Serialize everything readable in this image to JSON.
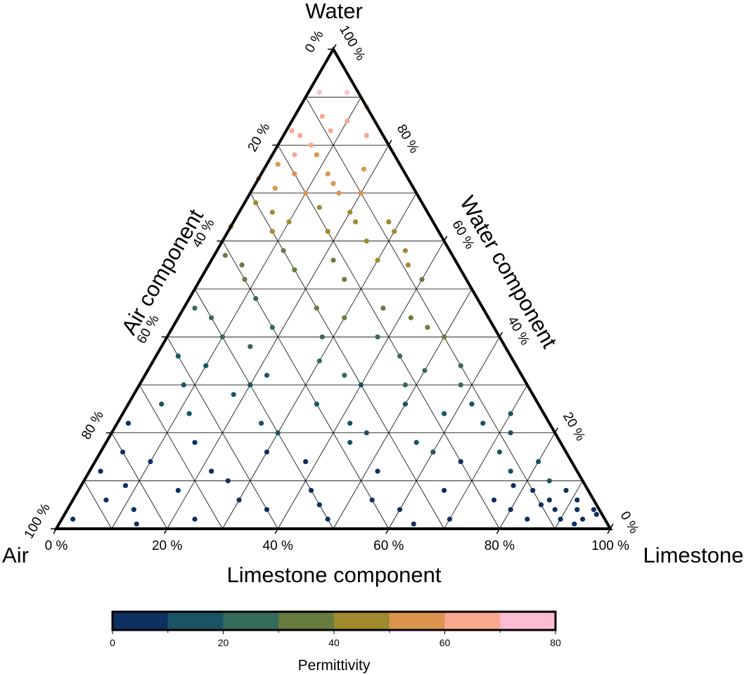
{
  "chart_data": {
    "type": "scatter",
    "subtype": "ternary",
    "vertex_labels": {
      "top": "Water",
      "left": "Air",
      "right": "Limestone"
    },
    "axis_labels": {
      "bottom": "Limestone component",
      "left": "Air component",
      "right": "Water component"
    },
    "tick_labels": [
      "0 %",
      "20 %",
      "40 %",
      "60 %",
      "80 %",
      "100 %"
    ],
    "tick_values": [
      0,
      20,
      40,
      60,
      80,
      100
    ],
    "grid": true,
    "grid_step": 10,
    "colorbar": {
      "label": "Permittivity",
      "range": [
        0,
        80
      ],
      "ticks": [
        "0",
        "20",
        "40",
        "60",
        "80"
      ],
      "tick_values": [
        0,
        20,
        40,
        60,
        80
      ],
      "step": 10,
      "colors": [
        "#0e3060",
        "#1a5464",
        "#356b5a",
        "#677d40",
        "#a08a2e",
        "#db954e",
        "#f9a890",
        "#fcbdd3"
      ],
      "placement": "bottom"
    },
    "point_fields": [
      "limestone_pct",
      "water_pct",
      "permittivity"
    ],
    "points": [
      [
        2,
        91,
        74
      ],
      [
        7,
        91,
        72
      ],
      [
        5,
        86,
        65
      ],
      [
        8,
        83,
        64
      ],
      [
        3,
        82,
        63
      ],
      [
        10,
        85,
        66
      ],
      [
        12,
        88,
        67
      ],
      [
        6,
        80,
        61
      ],
      [
        15,
        82,
        62
      ],
      [
        1,
        83,
        62
      ],
      [
        4,
        78,
        60
      ],
      [
        2,
        76,
        55
      ],
      [
        6,
        74,
        54
      ],
      [
        8,
        78,
        57
      ],
      [
        12,
        74,
        55
      ],
      [
        14,
        72,
        54
      ],
      [
        18,
        75,
        58
      ],
      [
        10,
        70,
        52
      ],
      [
        0,
        73,
        52
      ],
      [
        4,
        71,
        51
      ],
      [
        16,
        70,
        53
      ],
      [
        20,
        70,
        54
      ],
      [
        2,
        68,
        45
      ],
      [
        6,
        66,
        44
      ],
      [
        10,
        64,
        43
      ],
      [
        14,
        67,
        47
      ],
      [
        18,
        62,
        44
      ],
      [
        22,
        64,
        46
      ],
      [
        0,
        63,
        41
      ],
      [
        8,
        62,
        42
      ],
      [
        26,
        60,
        45
      ],
      [
        28,
        64,
        48
      ],
      [
        30,
        62,
        47
      ],
      [
        20,
        66,
        48
      ],
      [
        2,
        57,
        36
      ],
      [
        6,
        55,
        35
      ],
      [
        12,
        58,
        38
      ],
      [
        16,
        54,
        36
      ],
      [
        22,
        56,
        39
      ],
      [
        30,
        56,
        40
      ],
      [
        34,
        58,
        42
      ],
      [
        26,
        52,
        36
      ],
      [
        8,
        52,
        33
      ],
      [
        36,
        55,
        40
      ],
      [
        40,
        52,
        38
      ],
      [
        2,
        46,
        27
      ],
      [
        6,
        44,
        26
      ],
      [
        12,
        48,
        29
      ],
      [
        18,
        42,
        27
      ],
      [
        24,
        46,
        30
      ],
      [
        30,
        44,
        30
      ],
      [
        36,
        46,
        32
      ],
      [
        42,
        44,
        32
      ],
      [
        46,
        42,
        31
      ],
      [
        50,
        40,
        30
      ],
      [
        10,
        40,
        24
      ],
      [
        38,
        40,
        28
      ],
      [
        28,
        40,
        27
      ],
      [
        4,
        36,
        18
      ],
      [
        10,
        34,
        18
      ],
      [
        16,
        38,
        21
      ],
      [
        22,
        32,
        18
      ],
      [
        30,
        35,
        21
      ],
      [
        36,
        32,
        20
      ],
      [
        44,
        36,
        24
      ],
      [
        50,
        33,
        22
      ],
      [
        56,
        34,
        24
      ],
      [
        58,
        30,
        21
      ],
      [
        20,
        30,
        16
      ],
      [
        40,
        30,
        19
      ],
      [
        48,
        30,
        20
      ],
      [
        8,
        30,
        14
      ],
      [
        6,
        26,
        12
      ],
      [
        12,
        24,
        12
      ],
      [
        18,
        28,
        15
      ],
      [
        26,
        22,
        12
      ],
      [
        34,
        26,
        14
      ],
      [
        42,
        22,
        13
      ],
      [
        50,
        26,
        16
      ],
      [
        58,
        24,
        16
      ],
      [
        62,
        26,
        18
      ],
      [
        66,
        22,
        16
      ],
      [
        70,
        24,
        18
      ],
      [
        46,
        20,
        12
      ],
      [
        2,
        22,
        9
      ],
      [
        30,
        20,
        11
      ],
      [
        72,
        20,
        16
      ],
      [
        4,
        16,
        6
      ],
      [
        10,
        14,
        6
      ],
      [
        16,
        18,
        8
      ],
      [
        22,
        12,
        6
      ],
      [
        30,
        16,
        8
      ],
      [
        38,
        14,
        8
      ],
      [
        44,
        18,
        10
      ],
      [
        52,
        12,
        8
      ],
      [
        60,
        16,
        10
      ],
      [
        66,
        14,
        9
      ],
      [
        72,
        16,
        11
      ],
      [
        76,
        12,
        10
      ],
      [
        80,
        14,
        12
      ],
      [
        2,
        12,
        5
      ],
      [
        26,
        10,
        5
      ],
      [
        56,
        18,
        11
      ],
      [
        84,
        10,
        11
      ],
      [
        2,
        2,
        2
      ],
      [
        6,
        6,
        3
      ],
      [
        12,
        4,
        3
      ],
      [
        18,
        8,
        4
      ],
      [
        24,
        2,
        3
      ],
      [
        30,
        6,
        4
      ],
      [
        36,
        4,
        4
      ],
      [
        42,
        8,
        5
      ],
      [
        48,
        2,
        4
      ],
      [
        54,
        6,
        5
      ],
      [
        60,
        4,
        5
      ],
      [
        66,
        8,
        6
      ],
      [
        70,
        2,
        5
      ],
      [
        76,
        6,
        7
      ],
      [
        80,
        4,
        7
      ],
      [
        84,
        2,
        7
      ],
      [
        86,
        6,
        8
      ],
      [
        88,
        4,
        8
      ],
      [
        90,
        2,
        8
      ],
      [
        92,
        4,
        9
      ],
      [
        94,
        2,
        8
      ],
      [
        96,
        3,
        9
      ],
      [
        82,
        8,
        8
      ],
      [
        78,
        9,
        8
      ],
      [
        8,
        9,
        4
      ],
      [
        14,
        1,
        2
      ],
      [
        45,
        5,
        4
      ],
      [
        64,
        1,
        5
      ],
      [
        88,
        8,
        9
      ],
      [
        91,
        6,
        9
      ],
      [
        93,
        1,
        8
      ],
      [
        95,
        4,
        9
      ],
      [
        85,
        5,
        8
      ]
    ]
  }
}
